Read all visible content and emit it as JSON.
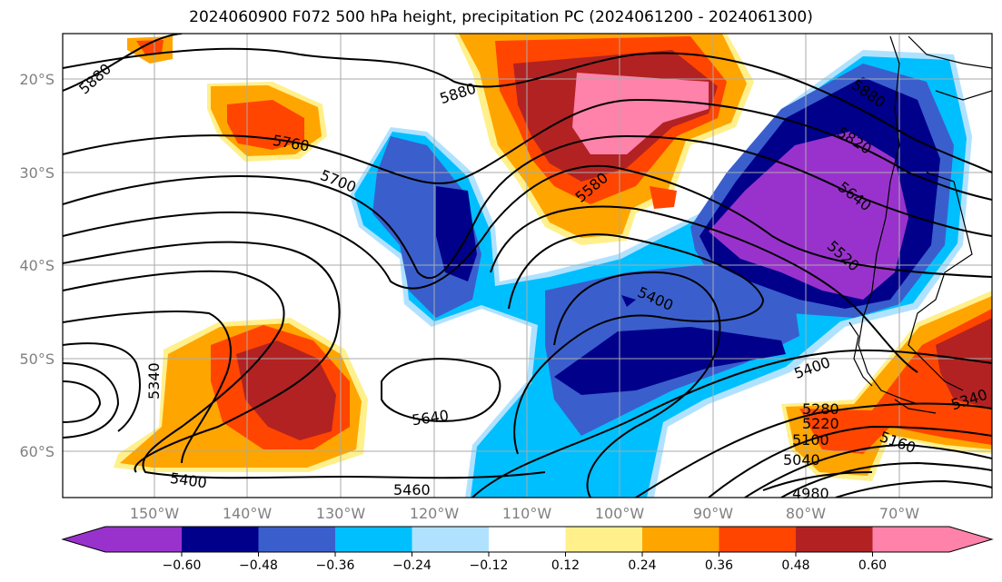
{
  "title": "2024060900 F072 500 hPa height, precipitation PC (2024061200 - 2024061300)",
  "lat_ticks": [
    "20°S",
    "30°S",
    "40°S",
    "50°S",
    "60°S"
  ],
  "lon_ticks": [
    "150°W",
    "140°W",
    "130°W",
    "120°W",
    "110°W",
    "100°W",
    "90°W",
    "80°W",
    "70°W"
  ],
  "colorbar": {
    "labels": [
      "−0.60",
      "−0.48",
      "−0.36",
      "−0.24",
      "−0.12",
      "0.12",
      "0.24",
      "0.36",
      "0.48",
      "0.60"
    ],
    "colors": [
      "#9932cc",
      "#00008b",
      "#3a5fcd",
      "#00bfff",
      "#b0e2ff",
      "#ffffff",
      "#fff08c",
      "#ffa500",
      "#ff4500",
      "#b22222",
      "#ff82ab"
    ]
  },
  "contour_labels": [
    "5880",
    "5880",
    "5880",
    "5820",
    "5760",
    "5700",
    "5580",
    "5640",
    "5520",
    "5400",
    "5400",
    "5340",
    "5340",
    "5640",
    "5400",
    "5460",
    "5280",
    "5220",
    "5100",
    "5160",
    "5040",
    "4980"
  ]
}
